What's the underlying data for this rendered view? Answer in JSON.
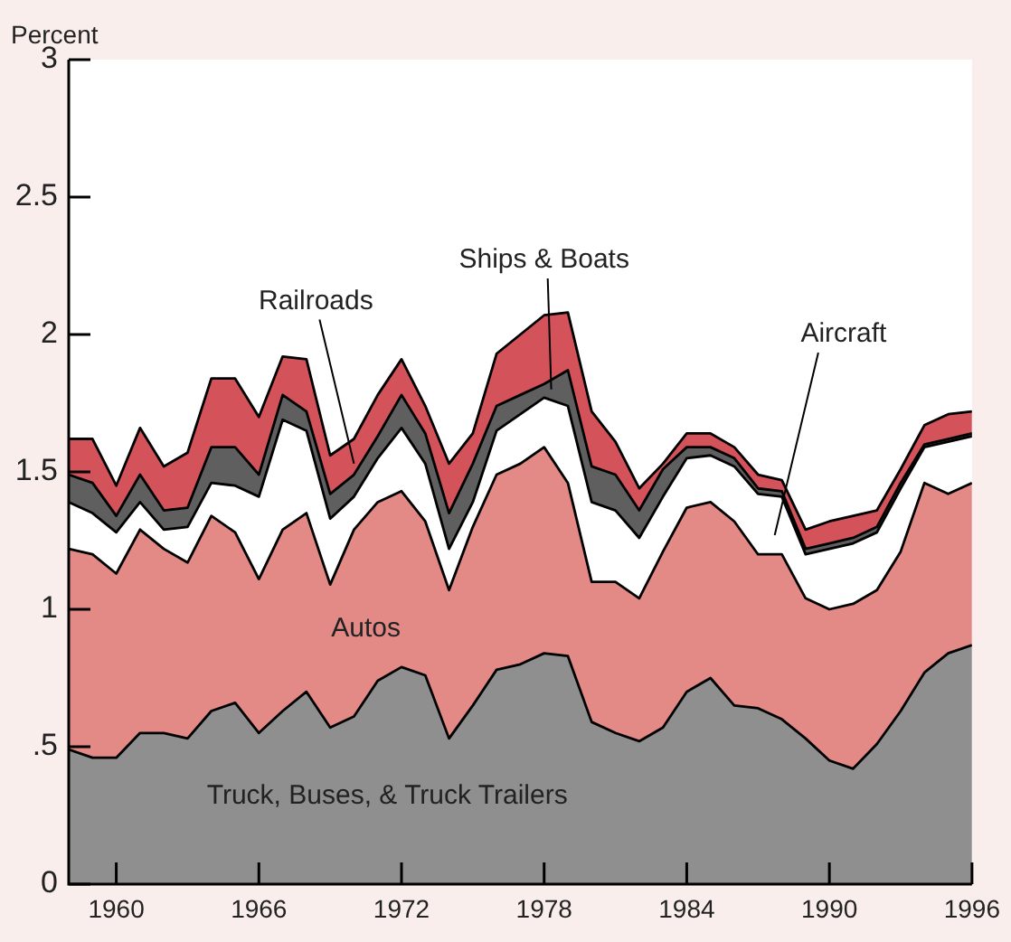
{
  "chart_data": {
    "type": "area",
    "stacked": true,
    "ylabel": "Percent",
    "x": [
      1958,
      1959,
      1960,
      1961,
      1962,
      1963,
      1964,
      1965,
      1966,
      1967,
      1968,
      1969,
      1970,
      1971,
      1972,
      1973,
      1974,
      1975,
      1976,
      1977,
      1978,
      1979,
      1980,
      1981,
      1982,
      1983,
      1984,
      1985,
      1986,
      1987,
      1988,
      1989,
      1990,
      1991,
      1992,
      1993,
      1994,
      1995,
      1996
    ],
    "xlim": [
      1958,
      1996
    ],
    "xticks": [
      1960,
      1966,
      1972,
      1978,
      1984,
      1990,
      1996
    ],
    "ylim": [
      0,
      3
    ],
    "yticks": [
      0,
      {
        "value": 0.5,
        "label": ".5"
      },
      1,
      1.5,
      2,
      2.5,
      3
    ],
    "grid": false,
    "legend": false,
    "marker": "none",
    "series": [
      {
        "name": "Truck, Buses, & Truck Trailers",
        "color": "#8f8f8f",
        "values": [
          0.49,
          0.46,
          0.46,
          0.55,
          0.55,
          0.53,
          0.63,
          0.66,
          0.55,
          0.63,
          0.7,
          0.57,
          0.61,
          0.74,
          0.79,
          0.76,
          0.53,
          0.65,
          0.78,
          0.8,
          0.84,
          0.83,
          0.59,
          0.55,
          0.52,
          0.57,
          0.7,
          0.75,
          0.65,
          0.64,
          0.6,
          0.53,
          0.45,
          0.42,
          0.51,
          0.63,
          0.77,
          0.84,
          0.87
        ]
      },
      {
        "name": "Autos",
        "color": "#e38a87",
        "values": [
          0.73,
          0.74,
          0.67,
          0.74,
          0.67,
          0.64,
          0.71,
          0.62,
          0.56,
          0.66,
          0.65,
          0.52,
          0.68,
          0.65,
          0.64,
          0.56,
          0.54,
          0.65,
          0.71,
          0.73,
          0.75,
          0.63,
          0.51,
          0.55,
          0.52,
          0.64,
          0.67,
          0.64,
          0.67,
          0.56,
          0.6,
          0.51,
          0.55,
          0.6,
          0.56,
          0.58,
          0.69,
          0.58,
          0.59
        ]
      },
      {
        "name": "Aircraft",
        "color": "#ffffff",
        "values": [
          0.17,
          0.15,
          0.15,
          0.1,
          0.07,
          0.13,
          0.12,
          0.17,
          0.3,
          0.4,
          0.3,
          0.24,
          0.12,
          0.16,
          0.23,
          0.21,
          0.15,
          0.09,
          0.16,
          0.18,
          0.18,
          0.28,
          0.29,
          0.26,
          0.22,
          0.2,
          0.18,
          0.17,
          0.2,
          0.22,
          0.21,
          0.16,
          0.22,
          0.22,
          0.21,
          0.23,
          0.13,
          0.19,
          0.17
        ]
      },
      {
        "name": "Ships & Boats",
        "color": "#5f5f5f",
        "values": [
          0.1,
          0.11,
          0.06,
          0.1,
          0.07,
          0.07,
          0.13,
          0.14,
          0.08,
          0.09,
          0.07,
          0.09,
          0.08,
          0.08,
          0.12,
          0.11,
          0.13,
          0.14,
          0.09,
          0.07,
          0.05,
          0.13,
          0.13,
          0.13,
          0.1,
          0.1,
          0.04,
          0.03,
          0.03,
          0.02,
          0.02,
          0.02,
          0.02,
          0.02,
          0.02,
          0.02,
          0.01,
          0.01,
          0.01
        ]
      },
      {
        "name": "Railroads",
        "color": "#d4535b",
        "values": [
          0.13,
          0.16,
          0.11,
          0.17,
          0.16,
          0.2,
          0.25,
          0.25,
          0.21,
          0.14,
          0.19,
          0.14,
          0.13,
          0.15,
          0.13,
          0.1,
          0.18,
          0.11,
          0.19,
          0.22,
          0.25,
          0.21,
          0.2,
          0.12,
          0.08,
          0.02,
          0.05,
          0.05,
          0.04,
          0.05,
          0.04,
          0.07,
          0.08,
          0.08,
          0.06,
          0.05,
          0.07,
          0.09,
          0.08
        ]
      }
    ]
  }
}
